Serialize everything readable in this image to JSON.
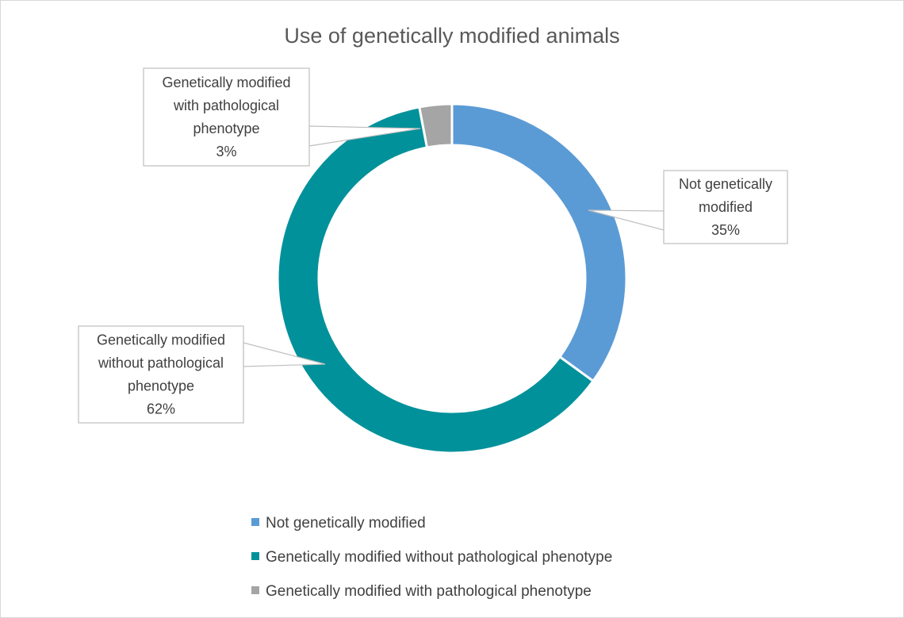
{
  "chart_data": {
    "type": "donut",
    "title": "Use of genetically modified animals",
    "series": [
      {
        "name": "Not genetically modified",
        "value": 35,
        "label": [
          "Not genetically",
          "modified",
          "35%"
        ],
        "color": "#5B9BD5"
      },
      {
        "name": "Genetically modified without pathological phenotype",
        "value": 62,
        "label": [
          "Genetically modified",
          "without pathological",
          "phenotype",
          "62%"
        ],
        "color": "#00919A"
      },
      {
        "name": "Genetically modified with pathological phenotype",
        "value": 3,
        "label": [
          "Genetically modified",
          "with pathological",
          "phenotype",
          "3%"
        ],
        "color": "#A5A5A5"
      }
    ],
    "start_angle": "12 o'clock",
    "direction": "clockwise",
    "legend_position": "bottom"
  }
}
